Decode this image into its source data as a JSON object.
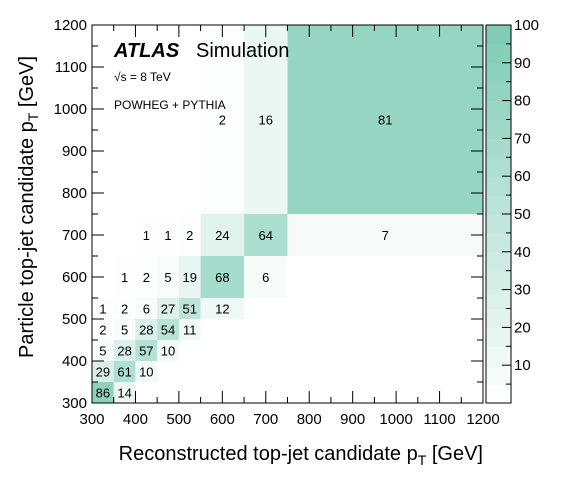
{
  "chart_data": {
    "type": "heatmap",
    "xlabel": "Reconstructed top-jet candidate p",
    "xlabel_sub": "T",
    "xlabel_unit": " [GeV]",
    "ylabel": "Particle top-jet candidate p",
    "ylabel_sub": "T",
    "ylabel_unit": " [GeV]",
    "x_bin_edges": [
      300,
      350,
      400,
      450,
      500,
      550,
      650,
      750,
      1200
    ],
    "y_bin_edges": [
      300,
      350,
      400,
      450,
      500,
      550,
      650,
      750,
      1200
    ],
    "xlim": [
      300,
      1200
    ],
    "ylim": [
      300,
      1200
    ],
    "x_ticks": [
      300,
      400,
      500,
      600,
      700,
      800,
      900,
      1000,
      1100,
      1200
    ],
    "y_ticks": [
      300,
      400,
      500,
      600,
      700,
      800,
      900,
      1000,
      1100,
      1200
    ],
    "colorbar": {
      "range": [
        0,
        100
      ],
      "ticks": [
        10,
        20,
        30,
        40,
        50,
        60,
        70,
        80,
        90,
        100
      ],
      "color_low": "#ffffff",
      "color_high": "#7ccbb3"
    },
    "cells": [
      {
        "x": 0,
        "y": 0,
        "v": 86
      },
      {
        "x": 1,
        "y": 0,
        "v": 14
      },
      {
        "x": 0,
        "y": 1,
        "v": 29
      },
      {
        "x": 1,
        "y": 1,
        "v": 61
      },
      {
        "x": 2,
        "y": 1,
        "v": 10
      },
      {
        "x": 0,
        "y": 2,
        "v": 5
      },
      {
        "x": 1,
        "y": 2,
        "v": 28
      },
      {
        "x": 2,
        "y": 2,
        "v": 57
      },
      {
        "x": 3,
        "y": 2,
        "v": 10
      },
      {
        "x": 0,
        "y": 3,
        "v": 2
      },
      {
        "x": 1,
        "y": 3,
        "v": 5
      },
      {
        "x": 2,
        "y": 3,
        "v": 28
      },
      {
        "x": 3,
        "y": 3,
        "v": 54
      },
      {
        "x": 4,
        "y": 3,
        "v": 11
      },
      {
        "x": 0,
        "y": 4,
        "v": 1
      },
      {
        "x": 1,
        "y": 4,
        "v": 2
      },
      {
        "x": 2,
        "y": 4,
        "v": 6
      },
      {
        "x": 3,
        "y": 4,
        "v": 27
      },
      {
        "x": 4,
        "y": 4,
        "v": 51
      },
      {
        "x": 5,
        "y": 4,
        "v": 12
      },
      {
        "x": 1,
        "y": 5,
        "v": 1
      },
      {
        "x": 2,
        "y": 5,
        "v": 2
      },
      {
        "x": 3,
        "y": 5,
        "v": 5
      },
      {
        "x": 4,
        "y": 5,
        "v": 19
      },
      {
        "x": 5,
        "y": 5,
        "v": 68
      },
      {
        "x": 6,
        "y": 5,
        "v": 6
      },
      {
        "x": 2,
        "y": 6,
        "v": 1
      },
      {
        "x": 3,
        "y": 6,
        "v": 1
      },
      {
        "x": 4,
        "y": 6,
        "v": 2
      },
      {
        "x": 5,
        "y": 6,
        "v": 24
      },
      {
        "x": 6,
        "y": 6,
        "v": 64
      },
      {
        "x": 7,
        "y": 6,
        "v": 7
      },
      {
        "x": 5,
        "y": 7,
        "v": 2
      },
      {
        "x": 6,
        "y": 7,
        "v": 16
      },
      {
        "x": 7,
        "y": 7,
        "v": 81
      }
    ],
    "annotations": {
      "experiment": "ATLAS",
      "label": "Simulation",
      "energy": "√s = 8 TeV",
      "generator": "POWHEG + PYTHIA"
    }
  }
}
